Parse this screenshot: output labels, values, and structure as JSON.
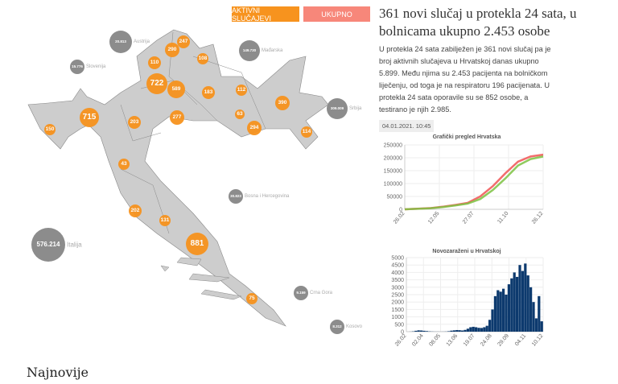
{
  "buttons": {
    "active": "AKTIVNI SLUČAJEVI",
    "total": "UKUPNO",
    "active_color": "#f7931e",
    "total_color": "#f7877a"
  },
  "article": {
    "title": "361 novi slučaj u protekla 24 sata, u bolnicama ukupno 2.453 osobe",
    "body": "U protekla 24 sata zabilježen je 361 novi slučaj pa je broj aktivnih slučajeva u Hrvatskoj danas ukupno 5.899. Među njima su 2.453 pacijenta na bolničkom liječenju, od toga je na respiratoru 196 pacijenata. U protekla 24 sata oporavile su se 852 osobe, a testirano je njih 2.985.",
    "date": "04.01.2021. 10:45"
  },
  "map": {
    "counties": [
      "247",
      "290",
      "110",
      "108",
      "722",
      "589",
      "183",
      "112",
      "390",
      "715",
      "63",
      "277",
      "203",
      "294",
      "150",
      "114",
      "43",
      "202",
      "131",
      "881",
      "75"
    ],
    "countries": [
      {
        "name": "Austrija",
        "value": "20.813"
      },
      {
        "name": "Slovenija",
        "value": "15.776"
      },
      {
        "name": "Mađarska",
        "value": "149.730"
      },
      {
        "name": "Srbija",
        "value": "309.009"
      },
      {
        "name": "Bosna i Hercegovina",
        "value": "30.823"
      },
      {
        "name": "Italija",
        "value": "576.214"
      },
      {
        "name": "Crna Gora",
        "value": "9.159"
      },
      {
        "name": "Kosovo",
        "value": "8.312"
      }
    ]
  },
  "chart_data": [
    {
      "type": "line",
      "title": "Grafički pregled Hrvatska",
      "ylim": [
        0,
        250000
      ],
      "yticks": [
        "250000",
        "200000",
        "150000",
        "100000",
        "50000",
        "0"
      ],
      "xticks": [
        "26.02",
        "12.05",
        "27.07",
        "11.10",
        "26.12"
      ],
      "x": [
        "26.02",
        "12.05",
        "27.07",
        "01.09",
        "11.10",
        "20.10",
        "01.11",
        "15.11",
        "01.12",
        "15.12",
        "26.12",
        "03.01"
      ],
      "series": [
        {
          "color": "#f05454",
          "values": [
            0,
            2200,
            4500,
            10000,
            17000,
            25000,
            50000,
            90000,
            140000,
            185000,
            205000,
            212000
          ]
        },
        {
          "color": "#7cc242",
          "values": [
            0,
            2000,
            3800,
            8500,
            15000,
            22000,
            40000,
            75000,
            120000,
            170000,
            195000,
            205000
          ]
        }
      ]
    },
    {
      "type": "bar",
      "title": "Novozaraženi u Hrvatskoj",
      "ylim": [
        0,
        5000
      ],
      "yticks": [
        "5000",
        "4500",
        "4000",
        "3500",
        "3000",
        "2500",
        "2000",
        "1500",
        "1000",
        "500",
        "0"
      ],
      "xticks": [
        "26.02",
        "02.04",
        "08.05",
        "13.06",
        "19.07",
        "24.08",
        "29.09",
        "04.11",
        "10.12"
      ],
      "color": "#0d3a6e",
      "values": [
        0,
        5,
        20,
        60,
        90,
        80,
        60,
        40,
        20,
        10,
        5,
        5,
        3,
        5,
        10,
        30,
        70,
        90,
        110,
        100,
        80,
        120,
        200,
        300,
        330,
        300,
        260,
        250,
        300,
        400,
        800,
        1500,
        2400,
        2800,
        2700,
        2900,
        2500,
        3200,
        3600,
        4000,
        3700,
        4500,
        4100,
        4600,
        3800,
        3000,
        2000,
        900,
        2400,
        700
      ]
    }
  ],
  "footer": {
    "heading": "Najnovije"
  }
}
